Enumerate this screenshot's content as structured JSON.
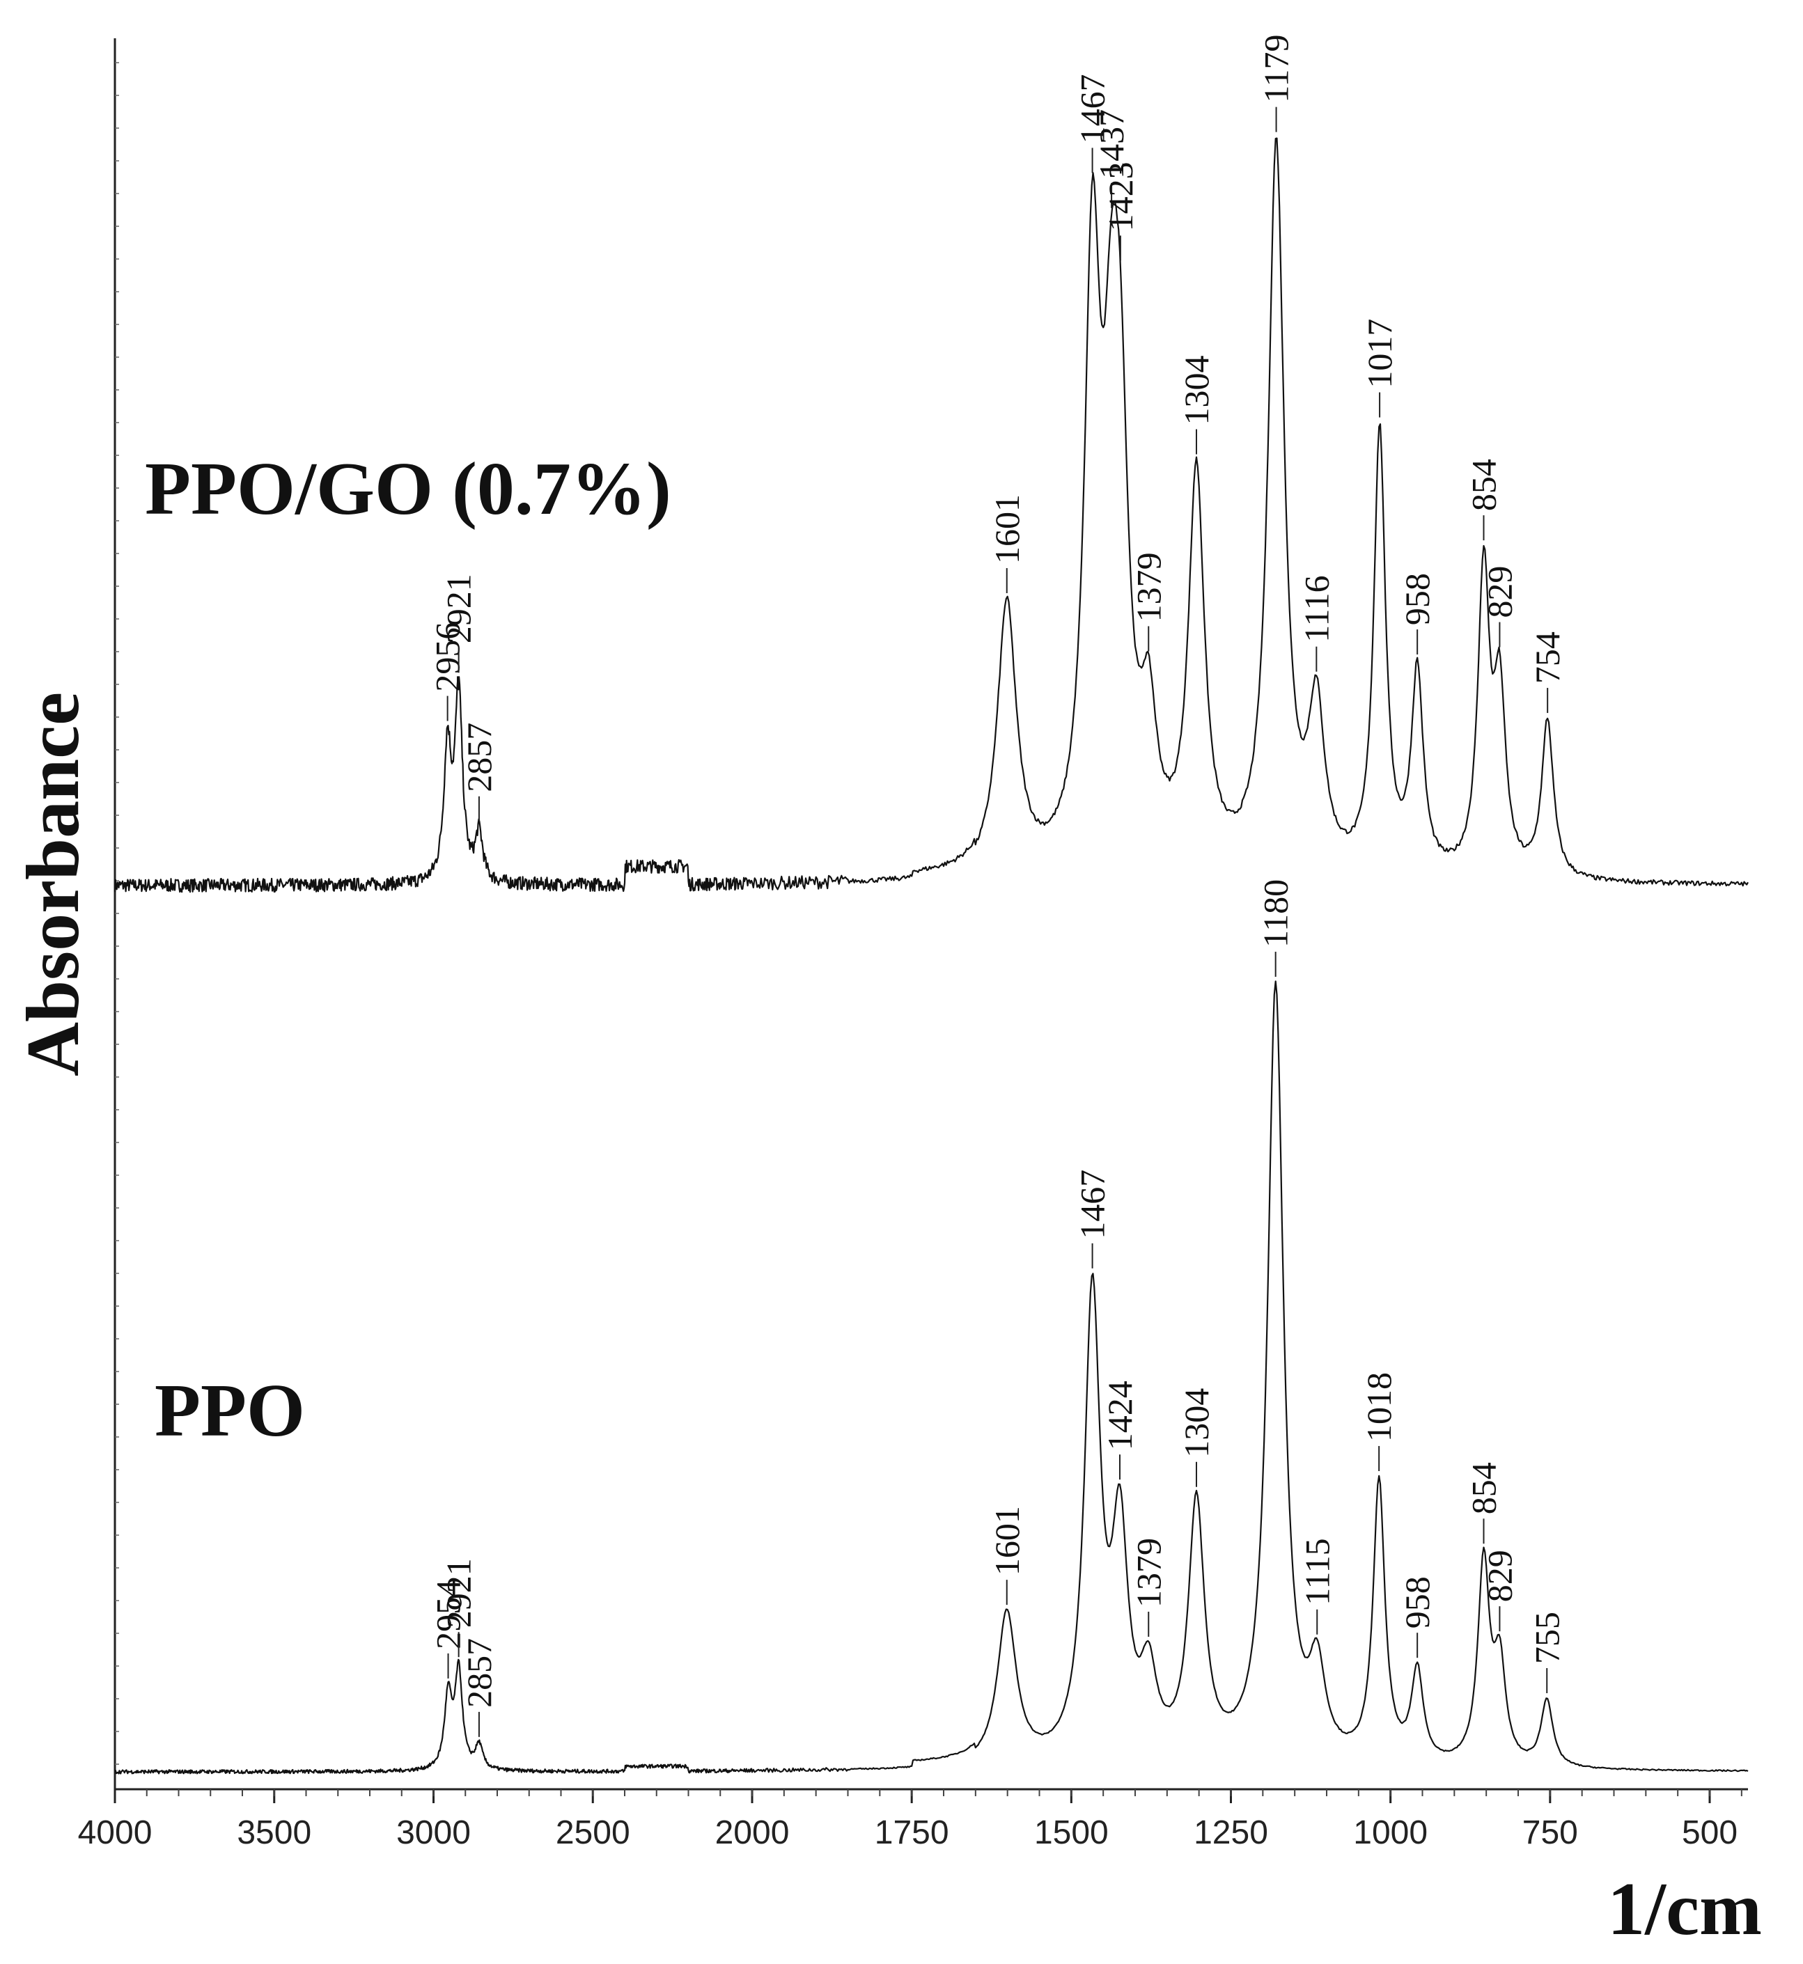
{
  "chart_data": {
    "type": "line",
    "title": "",
    "xlabel": "1/cm",
    "ylabel": "Absorbance",
    "x_range": [
      4000,
      440
    ],
    "x_ticks": [
      "4000",
      "3500",
      "3000",
      "2500",
      "2000",
      "1750",
      "1500",
      "1250",
      "1000",
      "750",
      "500"
    ],
    "series": [
      {
        "name": "PPO/GO (0.7%)",
        "baseline": 0.0,
        "peaks": [
          {
            "label": "2956",
            "x": 2956,
            "y": 0.22
          },
          {
            "label": "2921",
            "x": 2921,
            "y": 0.31
          },
          {
            "label": "2857",
            "x": 2857,
            "y": 0.08
          },
          {
            "label": "1601",
            "x": 1601,
            "y": 0.45
          },
          {
            "label": "1467",
            "x": 1467,
            "y": 0.97
          },
          {
            "label": "1437",
            "x": 1437,
            "y": 0.58
          },
          {
            "label": "1423",
            "x": 1423,
            "y": 0.57
          },
          {
            "label": "1379",
            "x": 1379,
            "y": 0.22
          },
          {
            "label": "1304",
            "x": 1304,
            "y": 0.65
          },
          {
            "label": "1179",
            "x": 1179,
            "y": 1.2
          },
          {
            "label": "1116",
            "x": 1116,
            "y": 0.26
          },
          {
            "label": "1017",
            "x": 1017,
            "y": 0.73
          },
          {
            "label": "958",
            "x": 958,
            "y": 0.33
          },
          {
            "label": "854",
            "x": 854,
            "y": 0.5
          },
          {
            "label": "829",
            "x": 829,
            "y": 0.29
          },
          {
            "label": "754",
            "x": 754,
            "y": 0.26
          }
        ]
      },
      {
        "name": "PPO",
        "baseline": 0.0,
        "peaks": [
          {
            "label": "2954",
            "x": 2954,
            "y": 0.12
          },
          {
            "label": "2921",
            "x": 2921,
            "y": 0.16
          },
          {
            "label": "2857",
            "x": 2857,
            "y": 0.04
          },
          {
            "label": "1601",
            "x": 1601,
            "y": 0.25
          },
          {
            "label": "1467",
            "x": 1467,
            "y": 0.76
          },
          {
            "label": "1424",
            "x": 1424,
            "y": 0.36
          },
          {
            "label": "1379",
            "x": 1379,
            "y": 0.13
          },
          {
            "label": "1304",
            "x": 1304,
            "y": 0.42
          },
          {
            "label": "1180",
            "x": 1180,
            "y": 1.27
          },
          {
            "label": "1115",
            "x": 1115,
            "y": 0.14
          },
          {
            "label": "1018",
            "x": 1018,
            "y": 0.46
          },
          {
            "label": "958",
            "x": 958,
            "y": 0.15
          },
          {
            "label": "854",
            "x": 854,
            "y": 0.33
          },
          {
            "label": "829",
            "x": 829,
            "y": 0.16
          },
          {
            "label": "755",
            "x": 755,
            "y": 0.11
          }
        ]
      }
    ]
  }
}
